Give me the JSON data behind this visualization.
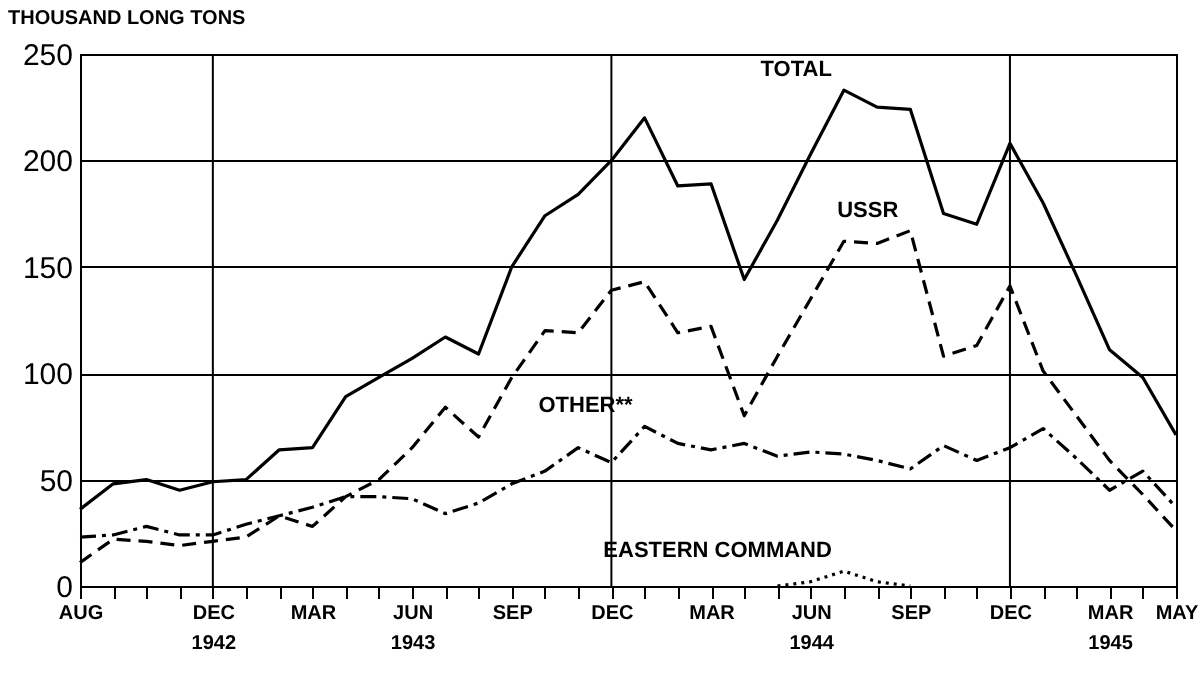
{
  "chart_data": {
    "type": "line",
    "ylabel": "THOUSAND LONG TONS",
    "x": [
      "1942-08",
      "1942-09",
      "1942-10",
      "1942-11",
      "1942-12",
      "1943-01",
      "1943-02",
      "1943-03",
      "1943-04",
      "1943-05",
      "1943-06",
      "1943-07",
      "1943-08",
      "1943-09",
      "1943-10",
      "1943-11",
      "1943-12",
      "1944-01",
      "1944-02",
      "1944-03",
      "1944-04",
      "1944-05",
      "1944-06",
      "1944-07",
      "1944-08",
      "1944-09",
      "1944-10",
      "1944-11",
      "1944-12",
      "1945-01",
      "1945-02",
      "1945-03",
      "1945-04",
      "1945-05"
    ],
    "series": [
      {
        "name": "TOTAL",
        "color": "#000000",
        "line_style": "solid",
        "values": [
          36,
          48,
          50,
          45,
          49,
          50,
          64,
          65,
          89,
          98,
          107,
          117,
          109,
          150,
          174,
          184,
          200,
          220,
          188,
          189,
          144,
          172,
          203,
          233,
          225,
          224,
          175,
          170,
          208,
          180,
          146,
          111,
          98,
          71
        ]
      },
      {
        "name": "USSR",
        "color": "#000000",
        "line_style": "dashed",
        "values": [
          11,
          22,
          21,
          19,
          21,
          23,
          33,
          28,
          42,
          50,
          65,
          84,
          70,
          98,
          120,
          119,
          139,
          143,
          119,
          122,
          80,
          108,
          135,
          162,
          161,
          167,
          108,
          113,
          141,
          101,
          80,
          59,
          43,
          26
        ]
      },
      {
        "name": "OTHER**",
        "color": "#000000",
        "line_style": "dashdot",
        "values": [
          23,
          24,
          28,
          24,
          24,
          29,
          33,
          37,
          42,
          42,
          41,
          34,
          39,
          48,
          54,
          65,
          58,
          75,
          67,
          64,
          67,
          61,
          63,
          62,
          59,
          55,
          66,
          59,
          65,
          74,
          60,
          45,
          54,
          37
        ]
      },
      {
        "name": "EASTERN COMMAND",
        "color": "#000000",
        "line_style": "dotted",
        "values": [
          null,
          null,
          null,
          null,
          null,
          null,
          null,
          null,
          null,
          null,
          null,
          null,
          null,
          null,
          null,
          null,
          null,
          null,
          null,
          null,
          null,
          0,
          2,
          7,
          2,
          0,
          null,
          null,
          null,
          null,
          null,
          null,
          null,
          null
        ]
      }
    ],
    "xlim": [
      "1942-08",
      "1945-05"
    ],
    "xticks": [
      {
        "value": "1942-08",
        "label": "AUG"
      },
      {
        "value": "1942-09",
        "label": null
      },
      {
        "value": "1942-10",
        "label": null
      },
      {
        "value": "1942-11",
        "label": null
      },
      {
        "value": "1942-12",
        "label": "DEC\n1942"
      },
      {
        "value": "1943-01",
        "label": null
      },
      {
        "value": "1943-02",
        "label": null
      },
      {
        "value": "1943-03",
        "label": "MAR"
      },
      {
        "value": "1943-04",
        "label": null
      },
      {
        "value": "1943-05",
        "label": null
      },
      {
        "value": "1943-06",
        "label": "JUN\n1943"
      },
      {
        "value": "1943-07",
        "label": null
      },
      {
        "value": "1943-08",
        "label": null
      },
      {
        "value": "1943-09",
        "label": "SEP"
      },
      {
        "value": "1943-10",
        "label": null
      },
      {
        "value": "1943-11",
        "label": null
      },
      {
        "value": "1943-12",
        "label": "DEC"
      },
      {
        "value": "1944-01",
        "label": null
      },
      {
        "value": "1944-02",
        "label": null
      },
      {
        "value": "1944-03",
        "label": "MAR"
      },
      {
        "value": "1944-04",
        "label": null
      },
      {
        "value": "1944-05",
        "label": null
      },
      {
        "value": "1944-06",
        "label": "JUN\n1944"
      },
      {
        "value": "1944-07",
        "label": null
      },
      {
        "value": "1944-08",
        "label": null
      },
      {
        "value": "1944-09",
        "label": "SEP"
      },
      {
        "value": "1944-10",
        "label": null
      },
      {
        "value": "1944-11",
        "label": null
      },
      {
        "value": "1944-12",
        "label": "DEC"
      },
      {
        "value": "1945-01",
        "label": null
      },
      {
        "value": "1945-02",
        "label": null
      },
      {
        "value": "1945-03",
        "label": "MAR\n1945"
      },
      {
        "value": "1945-04",
        "label": null
      },
      {
        "value": "1945-05",
        "label": "MAY"
      }
    ],
    "ylim": [
      0,
      250
    ],
    "yticks": [
      0,
      50,
      100,
      150,
      200,
      250
    ],
    "grid": "y",
    "ref_lines": [
      {
        "axis": "x",
        "value": "1942-12"
      },
      {
        "axis": "x",
        "value": "1943-12"
      },
      {
        "axis": "x",
        "value": "1944-12"
      }
    ]
  }
}
